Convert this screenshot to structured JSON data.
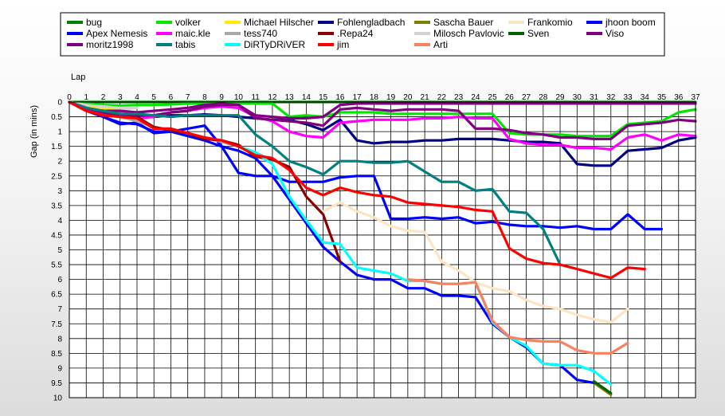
{
  "chart_data": {
    "type": "line",
    "title": "",
    "xlabel": "Lap",
    "ylabel": "Gap (in mins)",
    "xlim": [
      0,
      37
    ],
    "ylim": [
      0,
      10
    ],
    "y_inverted": true,
    "grid": true,
    "legend_position": "top",
    "x_ticks": [
      "0",
      "1",
      "2",
      "3",
      "4",
      "5",
      "6",
      "7",
      "8",
      "9",
      "10",
      "11",
      "12",
      "13",
      "14",
      "15",
      "16",
      "17",
      "18",
      "19",
      "20",
      "21",
      "22",
      "23",
      "24",
      "25",
      "26",
      "27",
      "28",
      "29",
      "30",
      "31",
      "32",
      "33",
      "34",
      "35",
      "36",
      "37"
    ],
    "y_ticks": [
      "0",
      "0.5",
      "1",
      "1.5",
      "2",
      "2.5",
      "3",
      "3.5",
      "4",
      "4.5",
      "5",
      "5.5",
      "6",
      "6.5",
      "7",
      "7.5",
      "8",
      "8.5",
      "9",
      "9.5",
      "10"
    ],
    "series": [
      {
        "name": "bug",
        "color": "#008000",
        "values": [
          0,
          0,
          0,
          0,
          0,
          0,
          0,
          0,
          0,
          0,
          0,
          0,
          0,
          0,
          0,
          0,
          0,
          0,
          0,
          0,
          0,
          0,
          0,
          0,
          0,
          0,
          0,
          0,
          0,
          0,
          0,
          0,
          0,
          0,
          0,
          0,
          0,
          0
        ]
      },
      {
        "name": "volker",
        "color": "#00e600",
        "values": [
          0,
          0.05,
          0.1,
          0.12,
          0.1,
          0.1,
          0.08,
          0.05,
          0.05,
          0.05,
          0.05,
          0.05,
          0.05,
          0.5,
          0.45,
          0.5,
          0.35,
          0.35,
          0.35,
          0.4,
          0.4,
          0.4,
          0.4,
          0.4,
          0.4,
          0.4,
          1.05,
          1.1,
          1.1,
          1.1,
          1.15,
          1.15,
          1.15,
          0.75,
          0.7,
          0.65,
          0.35,
          0.25
        ]
      },
      {
        "name": "Michael Hilscher",
        "color": "#ffea00",
        "values": [
          0,
          0.15,
          0.2,
          0.25,
          0.2
        ]
      },
      {
        "name": "Fohlengladbach",
        "color": "#000080",
        "values": [
          0,
          0.2,
          0.35,
          0.45,
          0.5,
          0.5,
          0.45,
          0.45,
          0.42,
          0.45,
          0.5,
          0.55,
          0.6,
          0.6,
          0.75,
          0.95,
          0.6,
          1.3,
          1.4,
          1.35,
          1.35,
          1.3,
          1.3,
          1.25,
          1.25,
          1.25,
          1.3,
          1.35,
          1.35,
          1.4,
          2.1,
          2.15,
          2.15,
          1.65,
          1.6,
          1.55,
          1.3,
          1.2
        ]
      },
      {
        "name": "Sascha Bauer",
        "color": "#808000",
        "values": [
          null,
          null,
          null,
          null,
          null,
          null,
          null,
          null,
          null,
          null,
          null,
          null,
          null,
          null,
          null,
          null,
          null,
          null,
          null,
          null,
          null,
          null,
          null,
          null,
          null,
          null,
          null,
          null,
          null,
          null,
          null,
          9.5,
          9.9
        ]
      },
      {
        "name": "Frankomio",
        "color": "#ffe4c4",
        "values": [
          null,
          null,
          null,
          null,
          null,
          null,
          null,
          null,
          null,
          null,
          null,
          null,
          null,
          null,
          null,
          3.7,
          3.4,
          3.7,
          3.9,
          4.2,
          4.35,
          4.4,
          5.4,
          5.7,
          6.1,
          6.3,
          6.4,
          6.7,
          6.9,
          7,
          7.2,
          7.35,
          7.45,
          7
        ]
      },
      {
        "name": "jhoon boom",
        "color": "#0000ff",
        "values": [
          0,
          0.25,
          0.5,
          0.7,
          0.75,
          1,
          1,
          0.9,
          0.8,
          1.5,
          2.4,
          2.5,
          2.5,
          2.7,
          2.7,
          2.7,
          2.55,
          2.5,
          2.5,
          3.95,
          3.95,
          3.9,
          3.95,
          3.9,
          4.1,
          4.05,
          4.15,
          4.2,
          4.2,
          4.25,
          4.2,
          4.3,
          4.3,
          3.8,
          4.3,
          4.3
        ]
      },
      {
        "name": "Apex Nemesis",
        "color": "#0000ff",
        "values": [
          0,
          0.3,
          0.5,
          0.75,
          0.7,
          1.05,
          1,
          1.15,
          1.3,
          1.5,
          1.65,
          1.9,
          2.5,
          3.3,
          4.1,
          4.9,
          5.4,
          5.85,
          6,
          6,
          6.3,
          6.3,
          6.55,
          6.55,
          6.6,
          7.5,
          7.95,
          8.3,
          8.85,
          8.9,
          9.4,
          9.5
        ]
      },
      {
        "name": "maic.kle",
        "color": "#ff00ff",
        "values": [
          0,
          0.3,
          0.4,
          0.5,
          0.55,
          0.5,
          0.35,
          0.3,
          0.2,
          0.15,
          0.2,
          0.5,
          0.65,
          1,
          1.15,
          1.2,
          0.7,
          0.65,
          0.6,
          0.6,
          0.6,
          0.55,
          0.55,
          0.5,
          0.55,
          0.55,
          1.25,
          1.4,
          1.45,
          1.45,
          1.55,
          1.55,
          1.6,
          1.2,
          1.1,
          1.3,
          1.1,
          1.15
        ]
      },
      {
        "name": "tess740",
        "color": "#a9a9a9",
        "values": [
          0,
          0.2,
          0.35,
          0.5,
          0.65,
          0.85,
          0.95,
          1.05,
          1.2,
          1.35,
          1.5,
          1.7,
          2.0
        ]
      },
      {
        "name": ".Repa24",
        "color": "#8b0000",
        "values": [
          0,
          0.3,
          0.45,
          0.5,
          0.5,
          0.85,
          0.95,
          1.05,
          1.25,
          1.3,
          1.45,
          1.85,
          1.95,
          2.2,
          3.2,
          3.8,
          5.4
        ]
      },
      {
        "name": "Milosch Pavlovic",
        "color": "#d3d3d3",
        "values": [
          0,
          0.1,
          0.15,
          0.2,
          0.2
        ]
      },
      {
        "name": "Sven",
        "color": "#006400",
        "values": [
          null,
          null,
          null,
          null,
          null,
          null,
          null,
          null,
          null,
          null,
          null,
          null,
          null,
          null,
          null,
          null,
          null,
          null,
          null,
          null,
          null,
          null,
          null,
          null,
          null,
          null,
          null,
          null,
          null,
          null,
          null,
          9.45,
          9.85
        ]
      },
      {
        "name": "Viso",
        "color": "#800080",
        "values": [
          0,
          0.2,
          0.3,
          0.3,
          0.35,
          0.3,
          0.25,
          0.2,
          0.1,
          0.05,
          0.1,
          0.45,
          0.5,
          0.55,
          0.55,
          0.5,
          0.1,
          0.05,
          0.05,
          0.05,
          0.05,
          0.05,
          0.05,
          0.05,
          0.05,
          0.05,
          0.05,
          0.05,
          0.05,
          0.05,
          0.05,
          0.05,
          0.05,
          0.05,
          0.05,
          0.05,
          0.05,
          0.05
        ]
      },
      {
        "name": "moritz1998",
        "color": "#800080",
        "values": [
          0,
          0.2,
          0.35,
          0.45,
          0.45,
          0.45,
          0.35,
          0.3,
          0.15,
          0.1,
          0.1,
          0.55,
          0.6,
          0.65,
          0.7,
          0.8,
          0.25,
          0.2,
          0.25,
          0.3,
          0.25,
          0.25,
          0.25,
          0.3,
          0.9,
          0.9,
          0.95,
          1.05,
          1.1,
          1.2,
          1.2,
          1.25,
          1.25,
          0.8,
          0.75,
          0.7,
          0.6,
          0.65
        ]
      },
      {
        "name": "tabis",
        "color": "#008080",
        "values": [
          0,
          0.2,
          0.3,
          0.4,
          0.4,
          0.45,
          0.5,
          0.45,
          0.45,
          0.45,
          0.45,
          1.1,
          1.5,
          2.0,
          2.2,
          2.45,
          2.0,
          2.0,
          2.05,
          2.05,
          2.0,
          2.35,
          2.7,
          2.7,
          3.0,
          2.95,
          3.7,
          3.75,
          4.3,
          5.5
        ]
      },
      {
        "name": "DiRTyDRiVER",
        "color": "#00ffff",
        "values": [
          null,
          null,
          null,
          null,
          null,
          null,
          null,
          null,
          null,
          null,
          1.5,
          1.7,
          2.1,
          3.2,
          4.0,
          4.75,
          4.8,
          5.6,
          5.7,
          5.8,
          6.05,
          6.05,
          6.15,
          6.15,
          6.1,
          7.45,
          7.95,
          8.25,
          8.85,
          8.9,
          8.9,
          9.1,
          9.55
        ]
      },
      {
        "name": "jim",
        "color": "#ff0000",
        "values": [
          0,
          0.3,
          0.45,
          0.5,
          0.55,
          0.9,
          0.9,
          1.05,
          1.2,
          1.3,
          1.5,
          1.8,
          1.9,
          2.3,
          2.9,
          3.15,
          2.9,
          3.05,
          3.15,
          3.2,
          3.4,
          3.45,
          3.5,
          3.55,
          3.65,
          3.7,
          4.95,
          5.3,
          5.45,
          5.5,
          5.65,
          5.8,
          5.95,
          5.6,
          5.65
        ]
      },
      {
        "name": "Arti",
        "color": "#fa8060",
        "values": [
          null,
          null,
          null,
          null,
          null,
          null,
          null,
          null,
          null,
          null,
          null,
          null,
          null,
          null,
          null,
          null,
          null,
          null,
          null,
          null,
          6.0,
          6.05,
          6.15,
          6.15,
          6.1,
          7.4,
          7.95,
          8.05,
          8.1,
          8.1,
          8.4,
          8.5,
          8.5,
          8.15
        ]
      }
    ]
  }
}
